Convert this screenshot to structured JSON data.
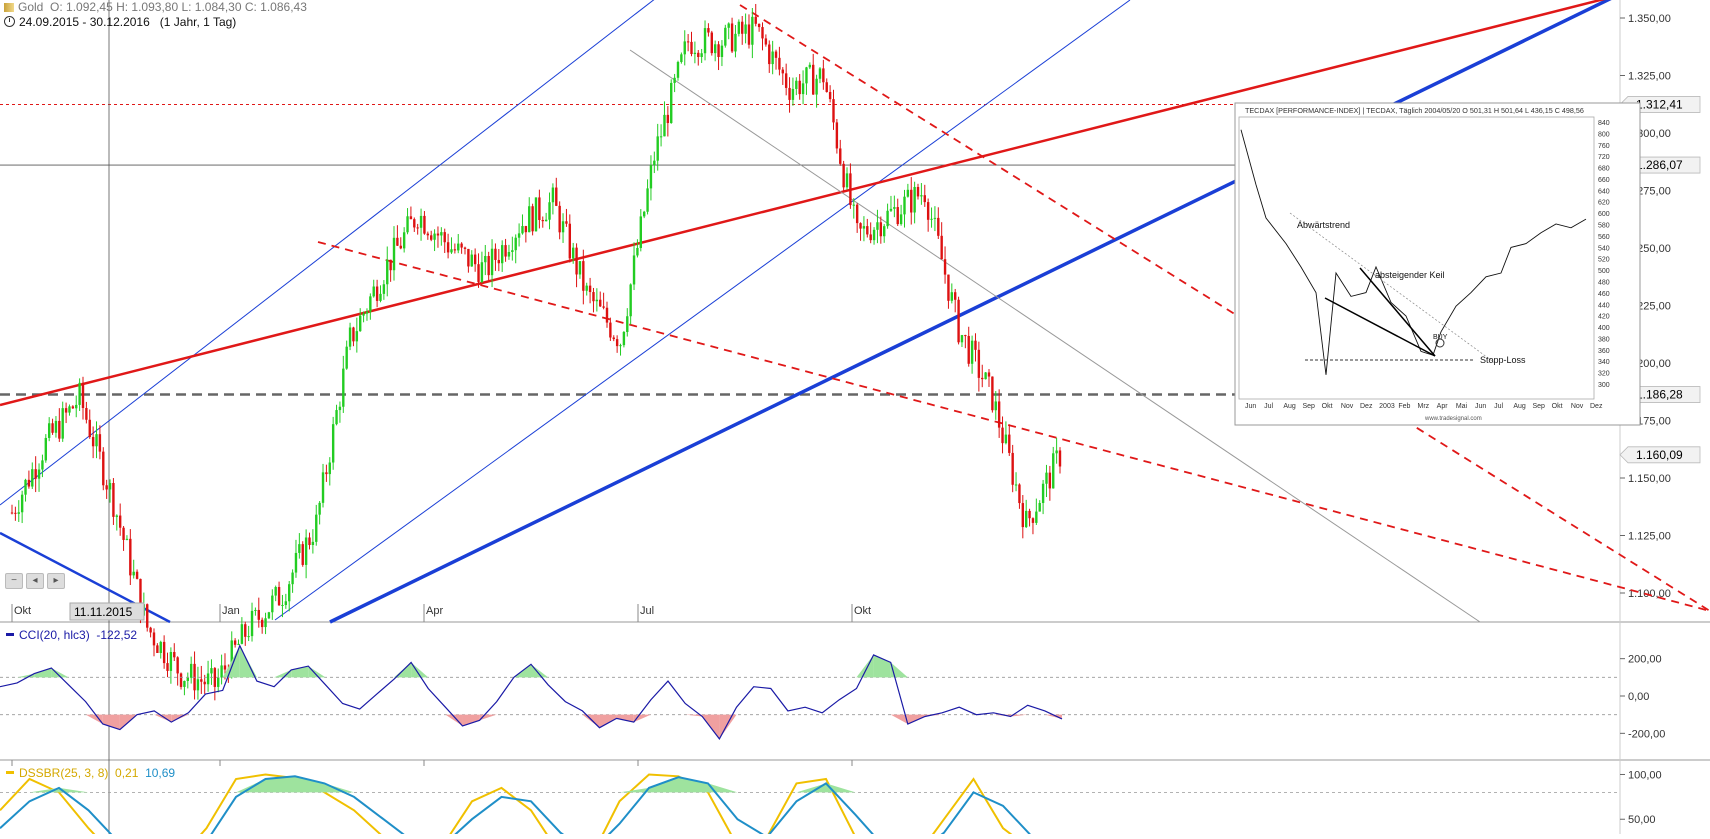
{
  "header": {
    "instrument": "Gold",
    "ohlc": "O: 1.092,45   H: 1.093,80   L: 1.084,30   C: 1.086,43",
    "date_range": "24.09.2015 - 30.12.2016",
    "period": "(1 Jahr, 1 Tag)"
  },
  "cursor_date_label": "11.11.2015",
  "price_labels": {
    "dotted_red": "1.312,41",
    "crosshair": "1.286,07",
    "dashed_gray": "1.186,28",
    "last": "1.160,09"
  },
  "cci_legend": {
    "name": "CCI(20, hlc3)",
    "value": "-122,52"
  },
  "dss_legend": {
    "name": "DSSBR(25, 3, 8)",
    "value1": "0,21",
    "value2": "10,69"
  },
  "inset": {
    "title": "TECDAX [PERFORMANCE-INDEX] | TECDAX, Täglich 2004/05/20  O 501,31 H 501,64 L 436,15 C 498,56",
    "label_trend": "Abwärtstrend",
    "label_wedge": "absteigender Keil",
    "label_buy": "BUY",
    "label_stop": "Stopp-Loss",
    "watermark": "www.tradesignal.com",
    "y_ticks": [
      "840",
      "800",
      "760",
      "720",
      "680",
      "660",
      "640",
      "620",
      "600",
      "580",
      "560",
      "540",
      "520",
      "500",
      "480",
      "460",
      "440",
      "420",
      "400",
      "380",
      "360",
      "340",
      "320",
      "300"
    ],
    "x_ticks": [
      "Jun",
      "Jul",
      "Aug",
      "Sep",
      "Okt",
      "Nov",
      "Dez",
      "2003",
      "Feb",
      "Mrz",
      "Apr",
      "Mai",
      "Jun",
      "Jul",
      "Aug",
      "Sep",
      "Okt",
      "Nov",
      "Dez"
    ]
  },
  "colors": {
    "up": "#22cc22",
    "down": "#dd1111",
    "trend_blue": "#1a3fd6",
    "trend_red": "#e01818",
    "cci_line": "#1a1aa6",
    "dss_yellow": "#f0c000",
    "dss_blue": "#1f8fc8"
  },
  "chart_data": [
    {
      "type": "candlestick",
      "title": "Gold",
      "x_ticks": [
        "Okt",
        "Jan",
        "Apr",
        "Jul",
        "Okt"
      ],
      "y_ticks": [
        "1.350,00",
        "1.325,00",
        "1.300,00",
        "1.275,00",
        "1.250,00",
        "1.225,00",
        "1.200,00",
        "1.175,00",
        "1.150,00",
        "1.125,00",
        "1.100,00"
      ],
      "ylim": [
        1090,
        1360
      ],
      "x": [
        "2015-09",
        "2015-10-01",
        "2015-10-15",
        "2015-11-01",
        "2015-11-15",
        "2015-12-01",
        "2015-12-15",
        "2016-01-01",
        "2016-01-15",
        "2016-02-01",
        "2016-02-15",
        "2016-03-01",
        "2016-03-15",
        "2016-04-01",
        "2016-04-15",
        "2016-05-01",
        "2016-05-15",
        "2016-06-01",
        "2016-06-15",
        "2016-07-01",
        "2016-07-15",
        "2016-08-01",
        "2016-08-15",
        "2016-09-01",
        "2016-09-15",
        "2016-10-01",
        "2016-10-15",
        "2016-11-01",
        "2016-11-15",
        "2016-12-01",
        "2016-12-15",
        "2016-12-30"
      ],
      "close": [
        1135,
        1165,
        1185,
        1140,
        1085,
        1065,
        1060,
        1085,
        1100,
        1130,
        1210,
        1240,
        1265,
        1250,
        1240,
        1260,
        1270,
        1230,
        1210,
        1290,
        1340,
        1340,
        1345,
        1320,
        1325,
        1255,
        1265,
        1275,
        1215,
        1185,
        1130,
        1160
      ],
      "horizontal_lines": [
        1312.41,
        1286.07,
        1186.28
      ]
    },
    {
      "type": "line",
      "title": "CCI(20, hlc3)",
      "y_ticks": [
        "200,00",
        "0,00",
        "-200,00"
      ],
      "ylim": [
        -300,
        300
      ],
      "reference_lines": [
        100,
        -100
      ],
      "values": [
        50,
        70,
        120,
        150,
        60,
        -30,
        -150,
        -180,
        -100,
        -80,
        -140,
        -90,
        10,
        30,
        270,
        80,
        50,
        140,
        160,
        60,
        -40,
        -70,
        10,
        90,
        180,
        40,
        -60,
        -160,
        -130,
        -30,
        100,
        170,
        60,
        -30,
        -80,
        -170,
        -120,
        -140,
        -20,
        80,
        -40,
        -110,
        -230,
        -60,
        50,
        40,
        -80,
        -60,
        -90,
        -20,
        40,
        220,
        180,
        -150,
        -110,
        -90,
        -60,
        -100,
        -90,
        -110,
        -50,
        -80,
        -122.52
      ]
    },
    {
      "type": "line",
      "title": "DSSBR(25, 3, 8)",
      "y_ticks": [
        "100,00",
        "50,00"
      ],
      "ylim": [
        0,
        105
      ],
      "reference_lines": [
        80
      ],
      "series": [
        {
          "name": "0,21",
          "values": [
            60,
            95,
            80,
            40,
            5,
            2,
            3,
            40,
            95,
            100,
            96,
            80,
            60,
            30,
            10,
            20,
            70,
            85,
            60,
            10,
            5,
            70,
            100,
            98,
            80,
            20,
            30,
            90,
            95,
            30,
            2,
            5,
            50,
            95,
            40,
            15,
            0.21
          ]
        },
        {
          "name": "10,69",
          "values": [
            40,
            70,
            85,
            60,
            25,
            8,
            6,
            25,
            75,
            95,
            98,
            90,
            75,
            50,
            25,
            20,
            50,
            75,
            70,
            35,
            12,
            45,
            85,
            97,
            90,
            50,
            30,
            70,
            90,
            55,
            18,
            10,
            35,
            80,
            65,
            30,
            10.69
          ]
        }
      ]
    }
  ]
}
